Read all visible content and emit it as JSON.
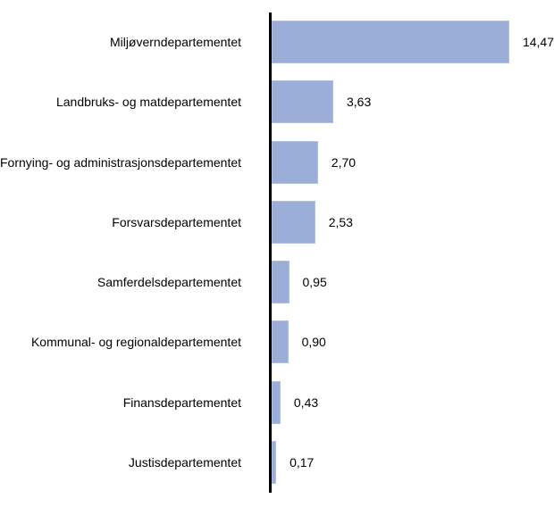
{
  "chart_data": {
    "type": "bar",
    "orientation": "horizontal",
    "title": "",
    "xlabel": "",
    "ylabel": "",
    "categories": [
      "Miljøverndepartementet",
      "Landbruks- og matdepartementet",
      "Fornying- og administrasjonsdepartementet",
      "Forsvarsdepartementet",
      "Samferdelsdepartementet",
      "Kommunal- og regionaldepartementet",
      "Finansdepartementet",
      "Justisdepartementet"
    ],
    "values": [
      14.47,
      3.63,
      2.7,
      2.53,
      0.95,
      0.9,
      0.43,
      0.17
    ],
    "value_labels": [
      "14,47",
      "3,63",
      "2,70",
      "2,53",
      "0,95",
      "0,90",
      "0,43",
      "0,17"
    ],
    "value_label_position": "outside-end",
    "decimal_separator": ",",
    "xlim": [
      0,
      15
    ],
    "grid": false,
    "legend": false,
    "bar_color": "#9aaed8",
    "bar_border_color": "#b3c0e2",
    "axis_color": "#000000",
    "text_color": "#000000",
    "background_color": "#ffffff"
  }
}
